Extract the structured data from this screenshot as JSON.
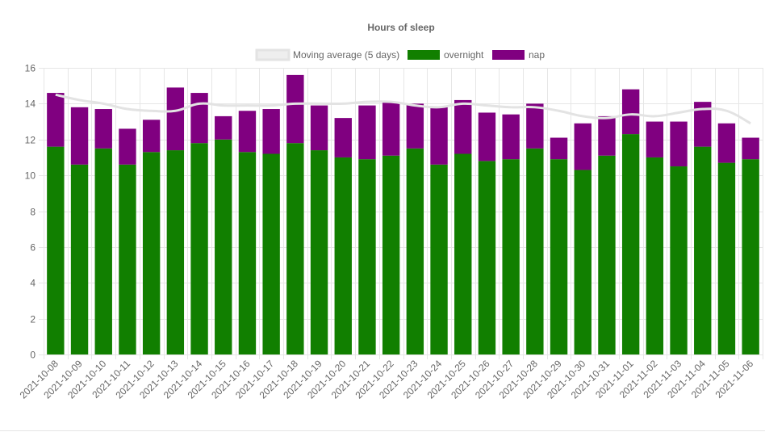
{
  "chart_data": {
    "type": "bar",
    "stacked": true,
    "title": "Hours of sleep",
    "xlabel": "",
    "ylabel": "",
    "ylim": [
      0,
      16
    ],
    "y_ticks": [
      0,
      2,
      4,
      6,
      8,
      10,
      12,
      14,
      16
    ],
    "grid": true,
    "legend_position": "top",
    "categories": [
      "2021-10-08",
      "2021-10-09",
      "2021-10-10",
      "2021-10-11",
      "2021-10-12",
      "2021-10-13",
      "2021-10-14",
      "2021-10-15",
      "2021-10-16",
      "2021-10-17",
      "2021-10-18",
      "2021-10-19",
      "2021-10-20",
      "2021-10-21",
      "2021-10-22",
      "2021-10-23",
      "2021-10-24",
      "2021-10-25",
      "2021-10-26",
      "2021-10-27",
      "2021-10-28",
      "2021-10-29",
      "2021-10-30",
      "2021-10-31",
      "2021-11-01",
      "2021-11-02",
      "2021-11-03",
      "2021-11-04",
      "2021-11-05",
      "2021-11-06"
    ],
    "series": [
      {
        "name": "Moving average (5 days)",
        "type": "line",
        "color": "#e3e3e3",
        "values": [
          14.5,
          14.2,
          14.0,
          13.7,
          13.6,
          13.6,
          14.0,
          13.9,
          13.9,
          13.9,
          14.0,
          14.0,
          14.0,
          14.1,
          14.1,
          13.9,
          13.8,
          14.0,
          13.9,
          13.8,
          13.8,
          13.6,
          13.3,
          13.2,
          13.4,
          13.3,
          13.5,
          13.7,
          13.6,
          12.9
        ]
      },
      {
        "name": "overnight",
        "type": "bar",
        "color": "#117f00",
        "values": [
          11.6,
          10.6,
          11.5,
          10.6,
          11.3,
          11.4,
          11.8,
          12.0,
          11.3,
          11.2,
          11.8,
          11.4,
          11.0,
          10.9,
          11.1,
          11.5,
          10.6,
          11.2,
          10.8,
          10.9,
          11.5,
          10.9,
          10.3,
          11.1,
          12.3,
          11.0,
          10.5,
          11.6,
          10.7,
          10.9
        ]
      },
      {
        "name": "nap",
        "type": "bar",
        "color": "#800080",
        "values": [
          3.0,
          3.2,
          2.2,
          2.0,
          1.8,
          3.5,
          2.8,
          1.3,
          2.3,
          2.5,
          3.8,
          2.5,
          2.2,
          3.0,
          3.0,
          2.5,
          3.2,
          3.0,
          2.7,
          2.5,
          2.5,
          1.2,
          2.6,
          2.2,
          2.5,
          2.0,
          2.5,
          2.5,
          2.2,
          1.2
        ]
      }
    ]
  }
}
